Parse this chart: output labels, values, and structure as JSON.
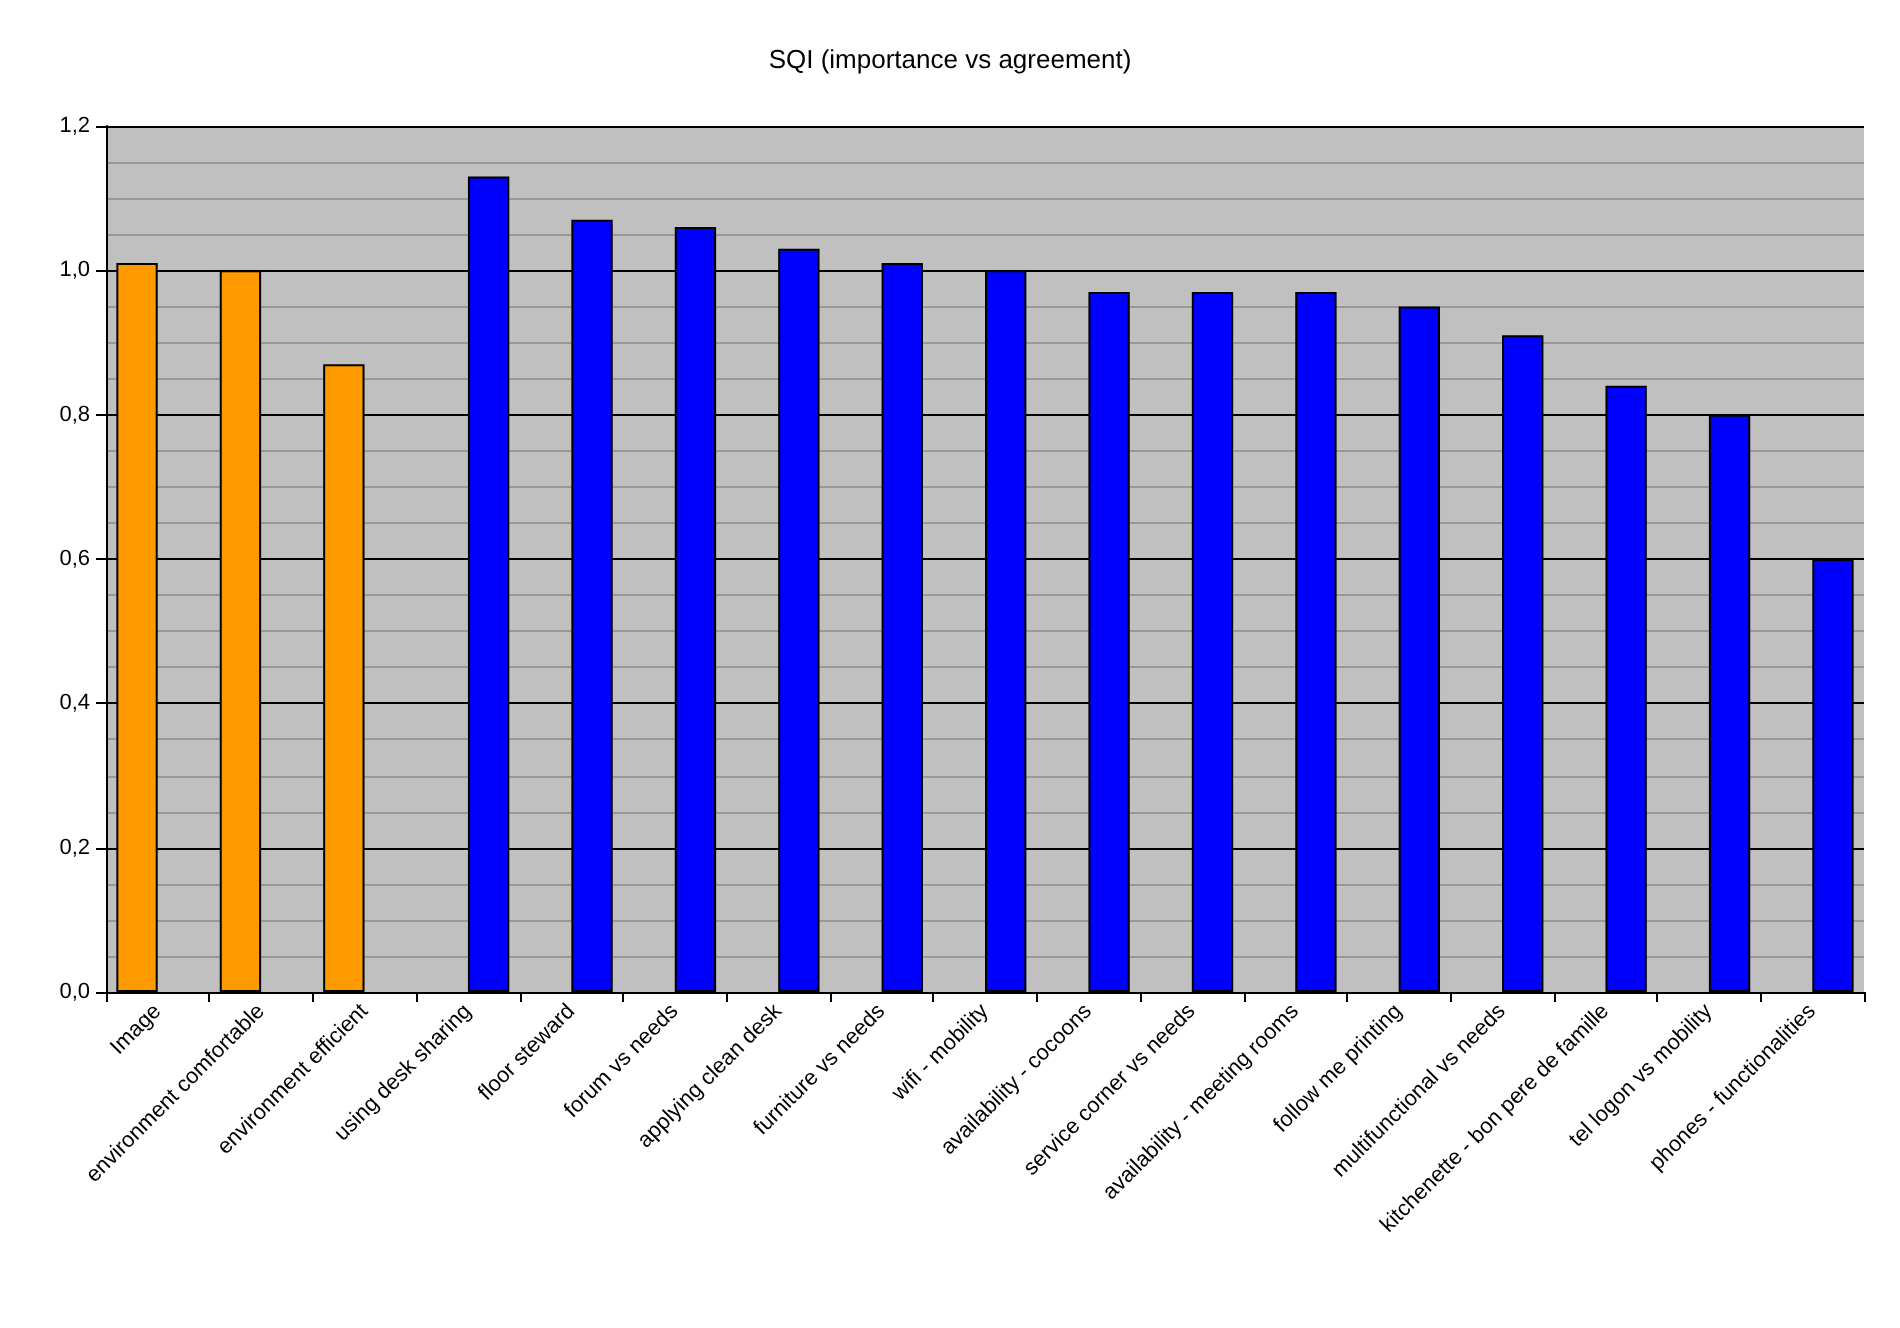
{
  "chart_data": {
    "type": "bar",
    "title": "SQI (importance vs agreement)",
    "categories": [
      "Image",
      "environment comfortable",
      "environment efficient",
      "using desk sharing",
      "floor steward",
      "forum vs needs",
      "applying clean desk",
      "furniture vs needs",
      "wifi - mobility",
      "availability - cocoons",
      "service corner vs needs",
      "availability - meeting rooms",
      "follow me printing",
      "multifunctional vs needs",
      "kitchenette - bon pere de famille",
      "tel logon vs mobility",
      "phones - functionalities"
    ],
    "series": [
      {
        "color": "#ff9900",
        "values": [
          1.01,
          1.0,
          0.87,
          null,
          null,
          null,
          null,
          null,
          null,
          null,
          null,
          null,
          null,
          null,
          null,
          null,
          null
        ]
      },
      {
        "color": "#0000ff",
        "values": [
          null,
          null,
          null,
          1.13,
          1.07,
          1.06,
          1.03,
          1.01,
          1.0,
          0.97,
          0.97,
          0.97,
          0.95,
          0.91,
          0.84,
          0.8,
          0.6
        ]
      }
    ],
    "ylim": [
      0,
      1.2
    ],
    "yticks": [
      {
        "value": 0,
        "label": "0,0"
      },
      {
        "value": 0.2,
        "label": "0,2"
      },
      {
        "value": 0.4,
        "label": "0,4"
      },
      {
        "value": 0.6,
        "label": "0,6"
      },
      {
        "value": 0.8,
        "label": "0,8"
      },
      {
        "value": 1.0,
        "label": "1,0"
      },
      {
        "value": 1.2,
        "label": "1,2"
      }
    ],
    "grid": true
  }
}
